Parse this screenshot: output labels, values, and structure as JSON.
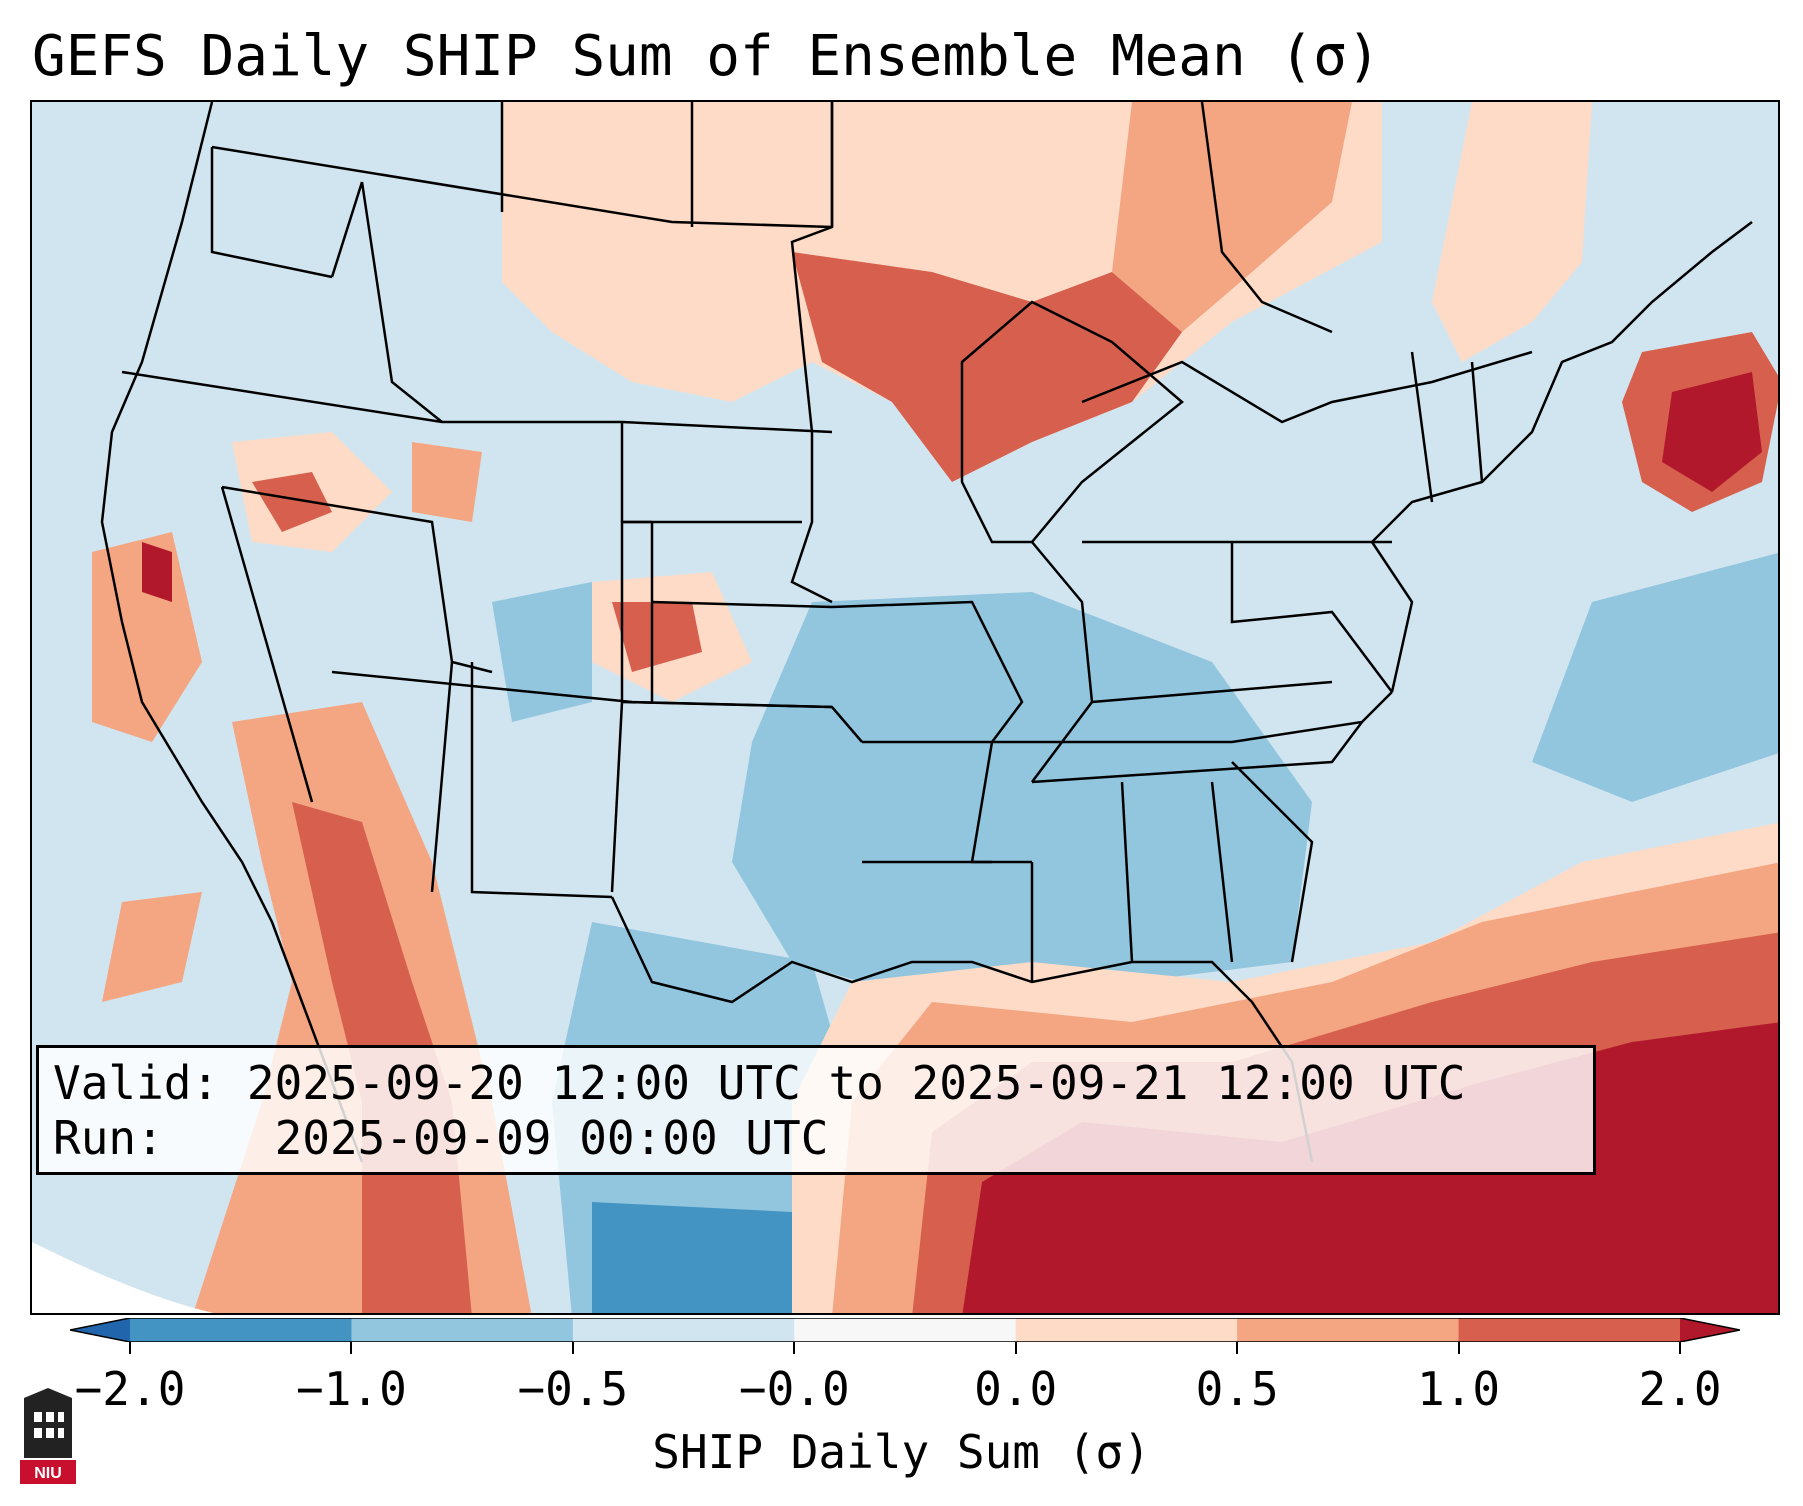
{
  "title": "GEFS Daily SHIP Sum of Ensemble Mean (σ)",
  "info": {
    "valid_label": "Valid:",
    "valid_value": "2025-09-20 12:00 UTC to 2025-09-21 12:00 UTC",
    "run_label": "Run:",
    "run_value": "2025-09-09 00:00 UTC"
  },
  "colorbar": {
    "label": "SHIP Daily Sum (σ)",
    "ticks": [
      "−2.0",
      "−1.0",
      "−0.5",
      "−0.0",
      "0.0",
      "0.5",
      "1.0",
      "2.0"
    ],
    "bins": [
      {
        "range": "< -2.0",
        "color": "#2166ac"
      },
      {
        "range": "-2.0 to -1.0",
        "color": "#4393c3"
      },
      {
        "range": "-1.0 to -0.5",
        "color": "#92c5de"
      },
      {
        "range": "-0.5 to -0.0",
        "color": "#d1e5f0"
      },
      {
        "range": "-0.0 to 0.0",
        "color": "#f7f7f7"
      },
      {
        "range": "0.0 to 0.5",
        "color": "#fddbc7"
      },
      {
        "range": "0.5 to 1.0",
        "color": "#f4a582"
      },
      {
        "range": "1.0 to 2.0",
        "color": "#d6604d"
      },
      {
        "range": "> 2.0",
        "color": "#b2182b"
      }
    ]
  },
  "logo": {
    "text": "NIU",
    "color": "#c8102e"
  }
}
